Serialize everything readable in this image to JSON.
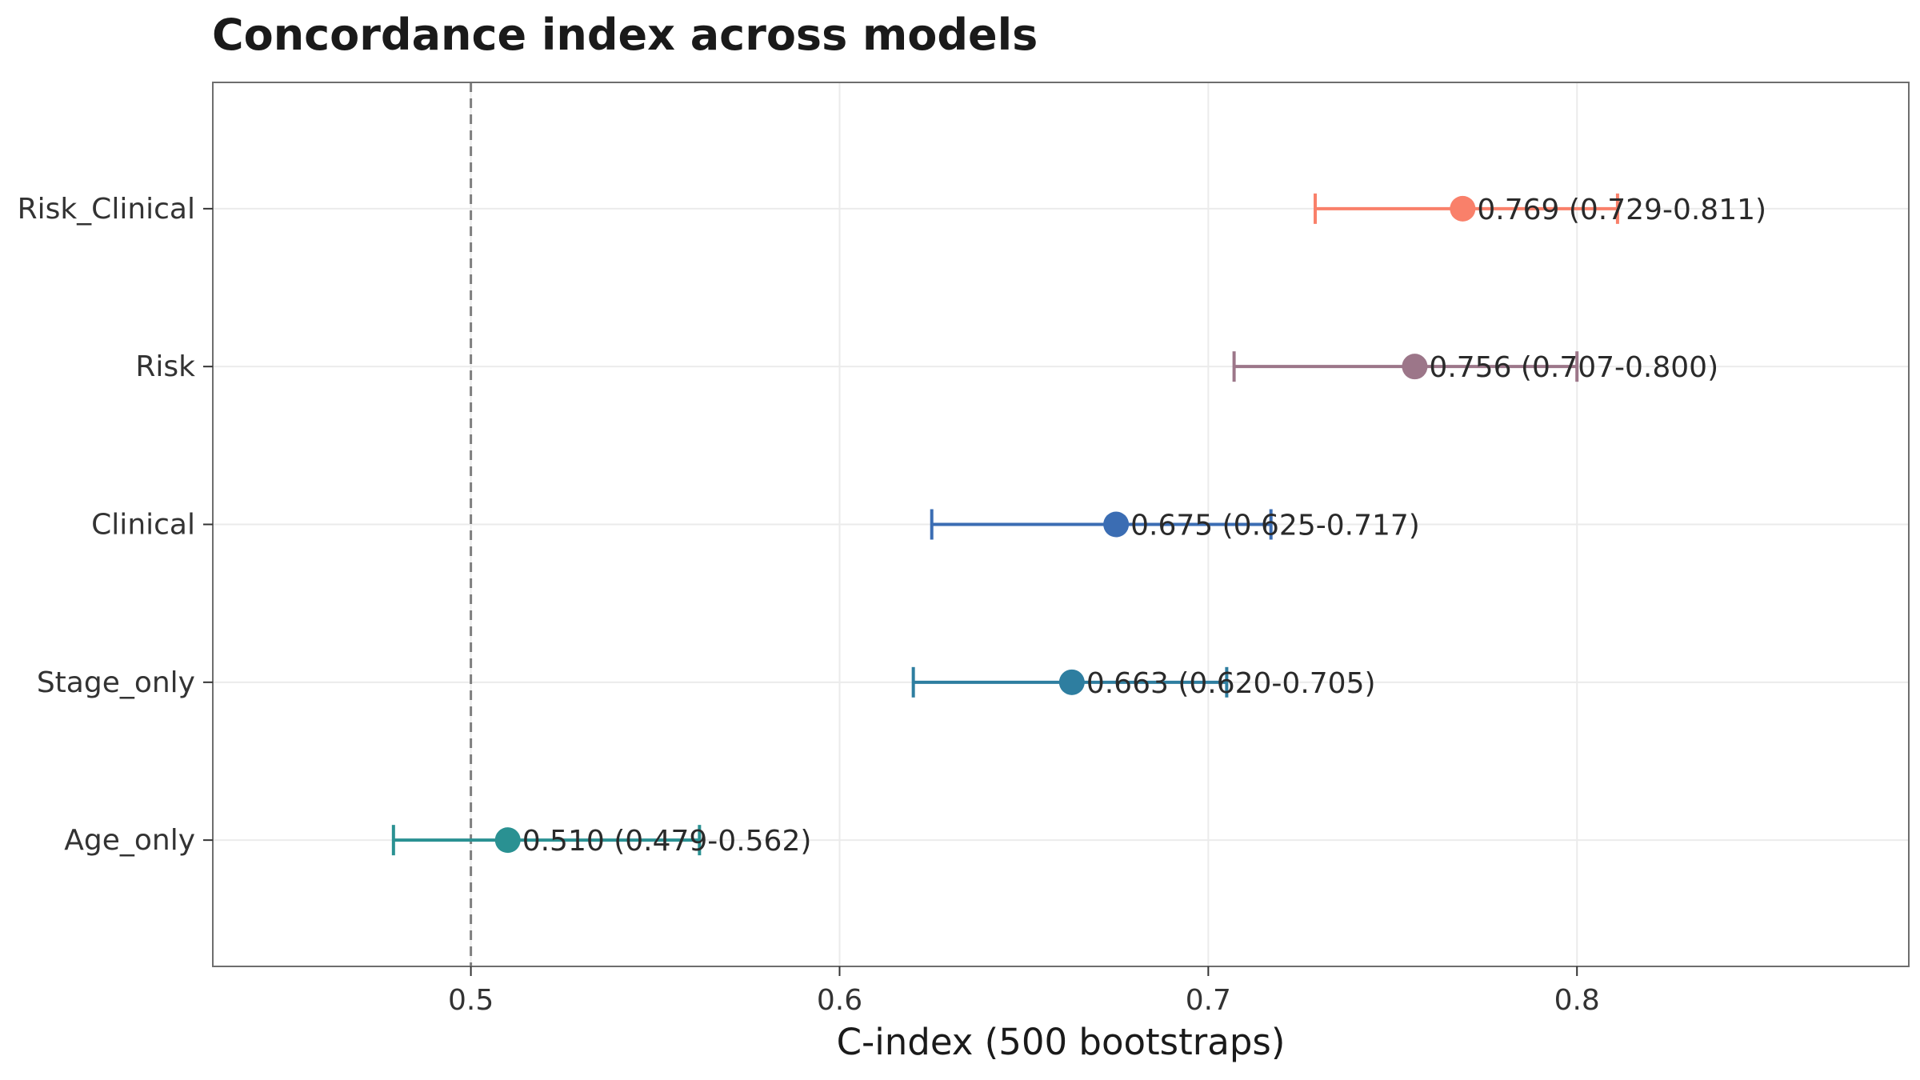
{
  "chart_data": {
    "type": "scatter",
    "title": "Concordance index across models",
    "xlabel": "C-index (500 bootstraps)",
    "ylabel": "",
    "xlim": [
      0.43,
      0.89
    ],
    "xticks": [
      0.5,
      0.6,
      0.7,
      0.8
    ],
    "xtick_labels": [
      "0.5",
      "0.6",
      "0.7",
      "0.8"
    ],
    "reference_line": 0.5,
    "grid": true,
    "categories": [
      "Age_only",
      "Stage_only",
      "Clinical",
      "Risk",
      "Risk_Clinical"
    ],
    "points": [
      {
        "model": "Age_only",
        "estimate": 0.51,
        "lower": 0.479,
        "upper": 0.562,
        "label": "0.510 (0.479-0.562)",
        "color": "#2a9192"
      },
      {
        "model": "Stage_only",
        "estimate": 0.663,
        "lower": 0.62,
        "upper": 0.705,
        "label": "0.663 (0.620-0.705)",
        "color": "#2e7ea0"
      },
      {
        "model": "Clinical",
        "estimate": 0.675,
        "lower": 0.625,
        "upper": 0.717,
        "label": "0.675 (0.625-0.717)",
        "color": "#3b6db3"
      },
      {
        "model": "Risk",
        "estimate": 0.756,
        "lower": 0.707,
        "upper": 0.8,
        "label": "0.756 (0.707-0.800)",
        "color": "#9c7689"
      },
      {
        "model": "Risk_Clinical",
        "estimate": 0.769,
        "lower": 0.729,
        "upper": 0.811,
        "label": "0.769 (0.729-0.811)",
        "color": "#f9806a"
      }
    ]
  }
}
